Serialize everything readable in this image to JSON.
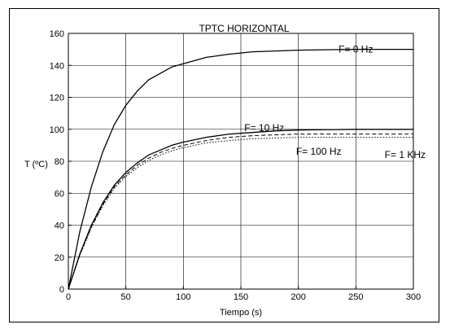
{
  "chart_data": {
    "type": "line",
    "title": "TPTC HORIZONTAL",
    "xlabel": "Tiempo (s)",
    "ylabel": "T (ºC)",
    "xlim": [
      0,
      300
    ],
    "ylim": [
      0,
      160
    ],
    "xticks": [
      0,
      50,
      100,
      150,
      200,
      250,
      300
    ],
    "yticks": [
      0,
      20,
      40,
      60,
      80,
      100,
      120,
      140,
      160
    ],
    "grid": true,
    "x": [
      0,
      10,
      20,
      30,
      40,
      50,
      60,
      70,
      80,
      90,
      100,
      120,
      140,
      160,
      180,
      200,
      250,
      300
    ],
    "series": [
      {
        "name": "F= 0 Hz",
        "values": [
          0,
          36,
          64,
          86,
          103,
          115,
          124,
          131,
          135,
          139,
          141,
          145,
          147,
          148.5,
          149,
          149.5,
          150,
          150
        ],
        "style": "solid"
      },
      {
        "name": "F= 10 Hz",
        "values": [
          0,
          22,
          40,
          54,
          65,
          73,
          79,
          84,
          87,
          90,
          92,
          95,
          97,
          98,
          99,
          99.5,
          100,
          100
        ],
        "style": "solid"
      },
      {
        "name": "F= 100 Hz",
        "values": [
          0,
          21.5,
          39,
          53,
          64,
          71.5,
          77.5,
          82,
          85.5,
          88,
          90,
          93,
          95,
          96,
          96.5,
          97,
          97,
          97
        ],
        "style": "dashed"
      },
      {
        "name": "F= 1 KHz",
        "values": [
          0,
          21,
          38.5,
          52,
          63,
          70.5,
          76,
          80.5,
          84,
          86.5,
          88.5,
          91.5,
          93,
          94,
          94.5,
          95,
          95,
          95
        ],
        "style": "dotted"
      }
    ],
    "annotations": [
      {
        "text": "F= 0 Hz",
        "x": 235,
        "y": 150
      },
      {
        "text": "F= 10 Hz",
        "x": 153,
        "y": 101
      },
      {
        "text": "F= 100 Hz",
        "x": 198,
        "y": 86
      },
      {
        "text": "F= 1 KHz",
        "x": 275,
        "y": 84
      }
    ]
  }
}
